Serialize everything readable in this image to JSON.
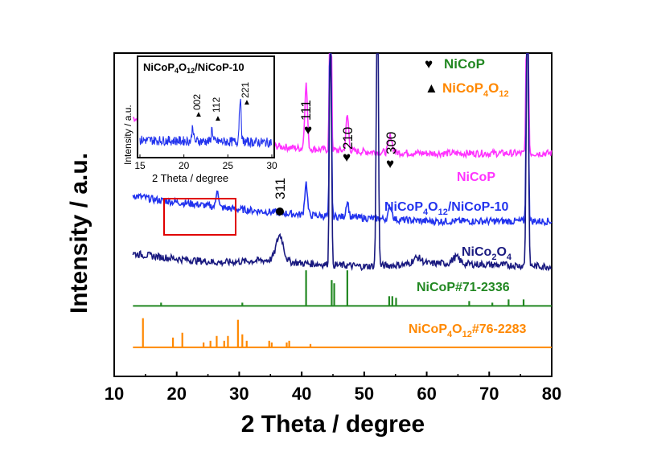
{
  "chart_data": {
    "type": "line",
    "title": "",
    "xlabel": "2 Theta / degree",
    "ylabel": "Intensity / a.u.",
    "xlim": [
      10,
      80
    ],
    "xticks": [
      "10",
      "20",
      "30",
      "40",
      "50",
      "60",
      "70",
      "80"
    ],
    "series": [
      {
        "name": "NiCoP",
        "color": "#ff33ff",
        "offset": 0.69,
        "baseline": [
          [
            13,
            0.11
          ],
          [
            17,
            0.085
          ],
          [
            22,
            0.06
          ],
          [
            28,
            0.04
          ],
          [
            34,
            0.025
          ],
          [
            40,
            0.015
          ],
          [
            50,
            0.005
          ],
          [
            60,
            0
          ],
          [
            80,
            0
          ]
        ],
        "peaks": [
          [
            40.7,
            0.2,
            0.3
          ],
          [
            44.6,
            1.0,
            0.18
          ],
          [
            47.3,
            0.11,
            0.3
          ],
          [
            54.2,
            0.05,
            0.4
          ],
          [
            76.1,
            1.0,
            0.2
          ]
        ]
      },
      {
        "name": "NiCoP4O12/NiCoP-10",
        "color": "#2233ee",
        "offset": 0.48,
        "baseline": [
          [
            13,
            0.08
          ],
          [
            17,
            0.065
          ],
          [
            22,
            0.055
          ],
          [
            28,
            0.04
          ],
          [
            34,
            0.03
          ],
          [
            40,
            0.02
          ],
          [
            50,
            0.01
          ],
          [
            60,
            0
          ],
          [
            80,
            0
          ]
        ],
        "peaks": [
          [
            26.5,
            0.06,
            0.25
          ],
          [
            40.7,
            0.1,
            0.3
          ],
          [
            44.6,
            1.0,
            0.18
          ],
          [
            47.3,
            0.05,
            0.3
          ],
          [
            54.2,
            0.04,
            0.4
          ],
          [
            76.1,
            1.0,
            0.2
          ]
        ]
      },
      {
        "name": "NiCo2O4",
        "color": "#1a1a80",
        "offset": 0.34,
        "baseline": [
          [
            13,
            0.04
          ],
          [
            17,
            0.03
          ],
          [
            22,
            0.02
          ],
          [
            27,
            0.012
          ],
          [
            35,
            0.02
          ],
          [
            40,
            0.01
          ],
          [
            50,
            0
          ],
          [
            62,
            0.01
          ],
          [
            80,
            0
          ]
        ],
        "peaks": [
          [
            36.5,
            0.08,
            0.8
          ],
          [
            44.6,
            1.0,
            0.2
          ],
          [
            52.1,
            1.0,
            0.22
          ],
          [
            58.5,
            0.02,
            1.0
          ],
          [
            64.7,
            0.02,
            0.8
          ],
          [
            76.1,
            1.0,
            0.22
          ]
        ]
      }
    ],
    "references": [
      {
        "name": "NiCoP#71-2336",
        "color": "#228822",
        "baseline": 0.218,
        "peaks": [
          [
            17.5,
            0.01
          ],
          [
            30.5,
            0.01
          ],
          [
            40.7,
            0.11
          ],
          [
            44.8,
            0.08
          ],
          [
            45.2,
            0.07
          ],
          [
            47.3,
            0.11
          ],
          [
            54.0,
            0.03
          ],
          [
            54.5,
            0.03
          ],
          [
            55.1,
            0.025
          ],
          [
            66.8,
            0.015
          ],
          [
            70.5,
            0.01
          ],
          [
            73.1,
            0.02
          ],
          [
            75.5,
            0.02
          ]
        ]
      },
      {
        "name": "NiCoP4O12#76-2283",
        "color": "#ff8800",
        "baseline": 0.09,
        "peaks": [
          [
            14.6,
            0.09
          ],
          [
            19.4,
            0.03
          ],
          [
            20.9,
            0.045
          ],
          [
            24.3,
            0.015
          ],
          [
            25.4,
            0.02
          ],
          [
            26.4,
            0.035
          ],
          [
            27.6,
            0.02
          ],
          [
            28.2,
            0.035
          ],
          [
            29.8,
            0.085
          ],
          [
            30.5,
            0.04
          ],
          [
            31.2,
            0.02
          ],
          [
            34.8,
            0.02
          ],
          [
            35.2,
            0.015
          ],
          [
            37.6,
            0.015
          ],
          [
            38.0,
            0.02
          ],
          [
            41.4,
            0.01
          ]
        ]
      }
    ],
    "peak_labels": [
      {
        "text": "111",
        "marker": "heart",
        "x": 40.7
      },
      {
        "text": "210",
        "marker": "heart",
        "x": 47.3
      },
      {
        "text": "300",
        "marker": "heart",
        "x": 54.3
      },
      {
        "text": "311",
        "marker": "circle",
        "x": 36.5
      }
    ],
    "legend": [
      {
        "marker": "♥",
        "text": "NiCoP",
        "color": "#228822"
      },
      {
        "marker": "▲",
        "text": "NiCoP4O12",
        "color": "#ff8800"
      }
    ],
    "inset": {
      "title": "NiCoP4O12/NiCoP-10",
      "ylabel": "Intensity / a.u.",
      "xlabel": "2 Theta / degree",
      "xlim": [
        15,
        30
      ],
      "xticks": [
        "15",
        "20",
        "25",
        "30"
      ],
      "color": "#2233ee",
      "peaks": [
        [
          21.0,
          0.2,
          0.12
        ],
        [
          23.2,
          0.17,
          0.12
        ],
        [
          26.4,
          0.55,
          0.15
        ]
      ],
      "peak_labels": [
        "002",
        "112",
        "221"
      ]
    }
  }
}
